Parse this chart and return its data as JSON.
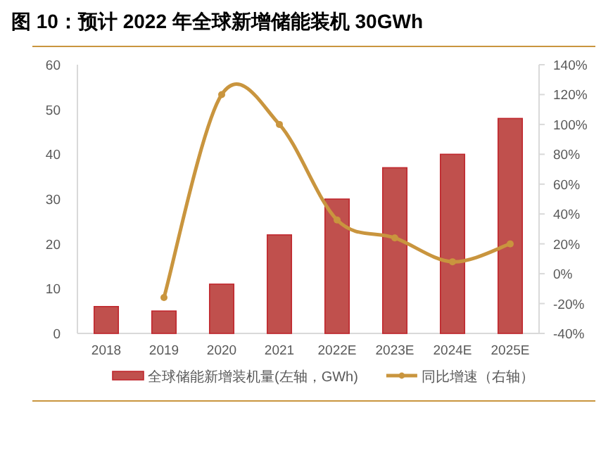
{
  "chart_data": {
    "type": "bar",
    "title": "图 10：预计 2022 年全球新增储能装机 30GWh",
    "categories": [
      "2018",
      "2019",
      "2020",
      "2021",
      "2022E",
      "2023E",
      "2024E",
      "2025E"
    ],
    "series": [
      {
        "name": "全球储能新增装机量(左轴，GWh)",
        "color": "#c0504d",
        "values": [
          6,
          5,
          11,
          22,
          30,
          37,
          40,
          48
        ]
      },
      {
        "name": "同比增速（右轴）",
        "type": "line",
        "axis": "y2",
        "color": "#c9953e",
        "values": [
          null,
          -16,
          120,
          100,
          36,
          24,
          8,
          20
        ]
      }
    ],
    "ylim": [
      0,
      60
    ],
    "yticks": [
      0,
      10,
      20,
      30,
      40,
      50,
      60
    ],
    "y2lim": [
      -40,
      140
    ],
    "y2ticks": [
      {
        "value": -40,
        "label": "-40%"
      },
      {
        "value": -20,
        "label": "-20%"
      },
      {
        "value": 0,
        "label": "0%"
      },
      {
        "value": 20,
        "label": "20%"
      },
      {
        "value": 40,
        "label": "40%"
      },
      {
        "value": 60,
        "label": "60%"
      },
      {
        "value": 80,
        "label": "80%"
      },
      {
        "value": 100,
        "label": "100%"
      },
      {
        "value": 120,
        "label": "120%"
      },
      {
        "value": 140,
        "label": "140%"
      }
    ],
    "marker": "circle",
    "line_style": "solid",
    "legend": "bottom",
    "grid": false
  }
}
